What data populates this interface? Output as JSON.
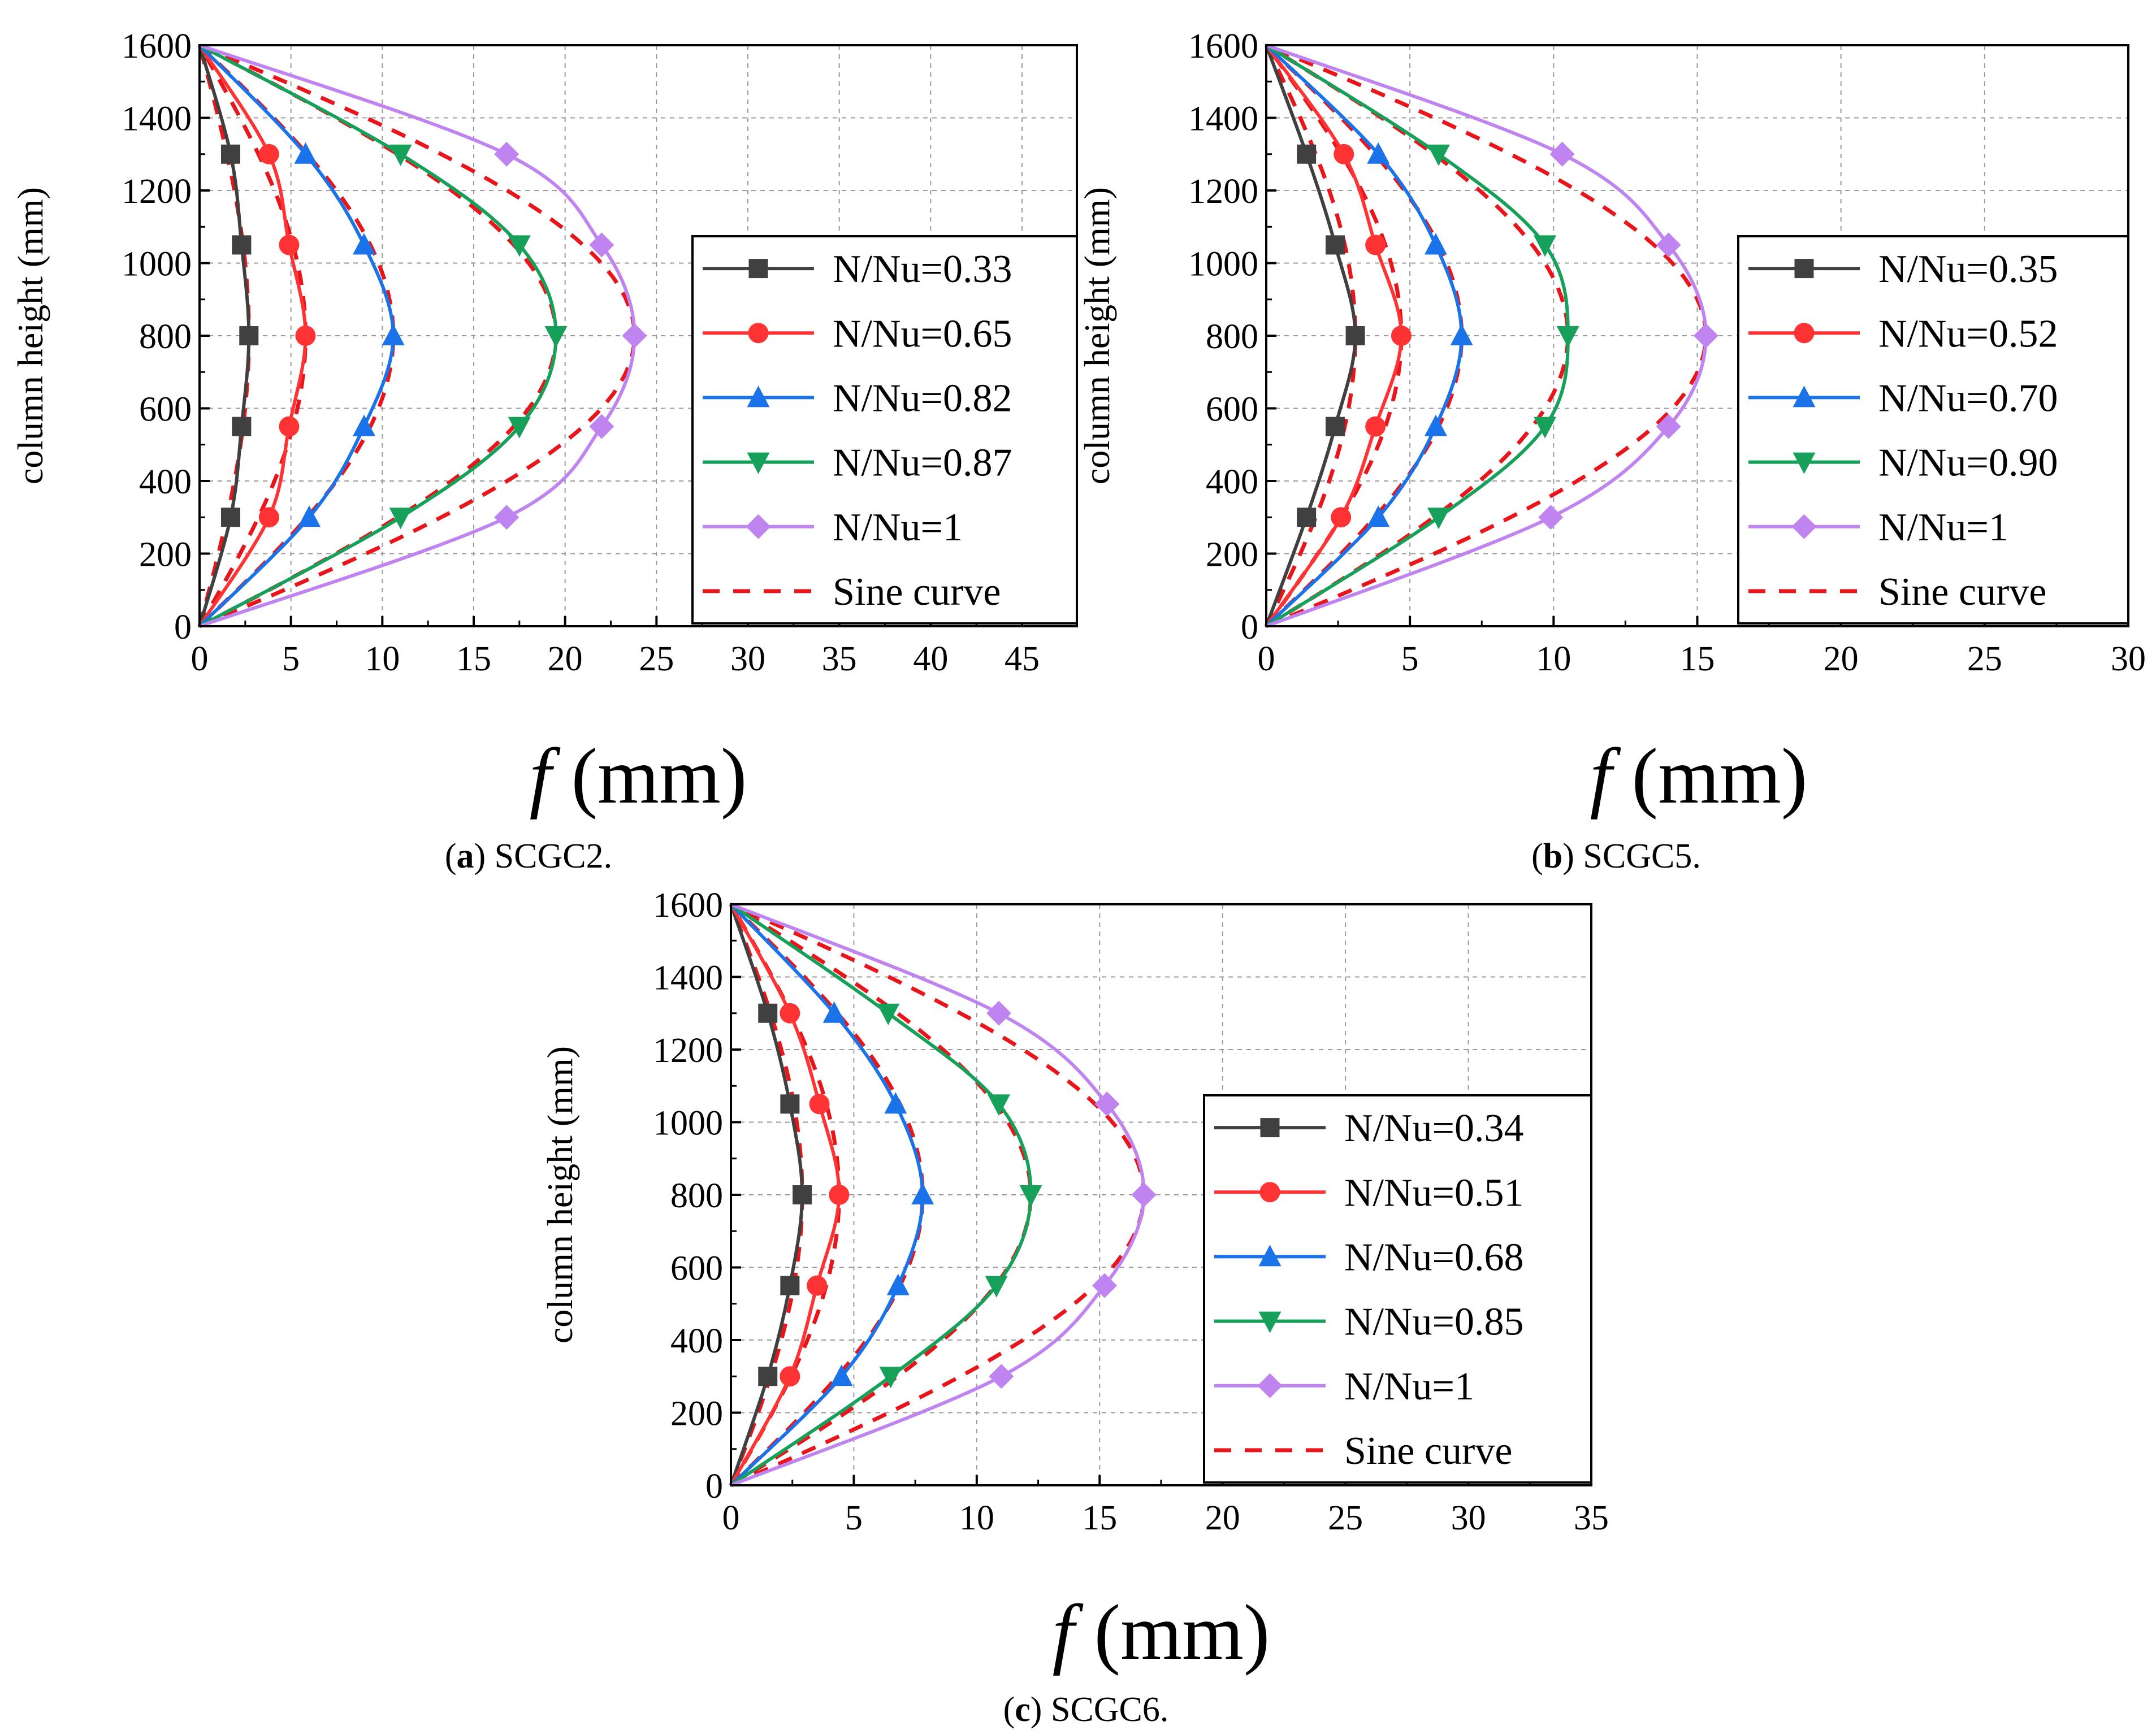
{
  "figure": {
    "xlabel": "f (mm)",
    "xlabel_italic": "f",
    "xlabel_unit": "(mm)",
    "ylabel": "column height (mm)"
  },
  "chart_data": [
    {
      "panel": "a",
      "caption_letter": "a",
      "caption_text": "SCGC2.",
      "type": "line",
      "xlabel": "f (mm)",
      "ylabel": "column height (mm)",
      "xlim": [
        0,
        48
      ],
      "ylim": [
        0,
        1600
      ],
      "xticks": [
        0,
        5,
        10,
        15,
        20,
        25,
        30,
        35,
        40,
        45
      ],
      "yticks": [
        0,
        200,
        400,
        600,
        800,
        1000,
        1200,
        1400,
        1600
      ],
      "grid": true,
      "legend_position": "right",
      "y": [
        0,
        300,
        550,
        800,
        1050,
        1300,
        1600
      ],
      "series": [
        {
          "name": "N/Nu=0.33",
          "color": "#404040",
          "marker": "square",
          "x": [
            0,
            1.7,
            2.3,
            2.7,
            2.3,
            1.7,
            0
          ],
          "sine_amplitude": 2.7
        },
        {
          "name": "N/Nu=0.65",
          "color": "#ff3333",
          "marker": "circle",
          "x": [
            0,
            3.8,
            4.9,
            5.8,
            4.9,
            3.8,
            0
          ],
          "sine_amplitude": 5.8
        },
        {
          "name": "N/Nu=0.82",
          "color": "#1a73e8",
          "marker": "triangle-up",
          "x": [
            0,
            6.0,
            9.0,
            10.6,
            9.0,
            5.8,
            0
          ],
          "sine_amplitude": 10.6
        },
        {
          "name": "N/Nu=0.87",
          "color": "#16a05a",
          "marker": "triangle-down",
          "x": [
            0,
            11.0,
            17.5,
            19.5,
            17.5,
            11.0,
            0
          ],
          "sine_amplitude": 19.5
        },
        {
          "name": "N/Nu=1",
          "color": "#c084f0",
          "marker": "diamond",
          "x": [
            0,
            16.8,
            22.0,
            23.8,
            22.0,
            16.8,
            0
          ],
          "sine_amplitude": 23.8
        }
      ],
      "sine_legend": "Sine curve"
    },
    {
      "panel": "b",
      "caption_letter": "b",
      "caption_text": "SCGC5.",
      "type": "line",
      "xlabel": "f (mm)",
      "ylabel": "column height (mm)",
      "xlim": [
        0,
        30
      ],
      "ylim": [
        0,
        1600
      ],
      "xticks": [
        0,
        5,
        10,
        15,
        20,
        25,
        30
      ],
      "yticks": [
        0,
        200,
        400,
        600,
        800,
        1000,
        1200,
        1400,
        1600
      ],
      "grid": true,
      "legend_position": "right",
      "y": [
        0,
        300,
        550,
        800,
        1050,
        1300,
        1600
      ],
      "series": [
        {
          "name": "N/Nu=0.35",
          "color": "#404040",
          "marker": "square",
          "x": [
            0,
            1.4,
            2.4,
            3.1,
            2.4,
            1.4,
            0
          ],
          "sine_amplitude": 3.1
        },
        {
          "name": "N/Nu=0.52",
          "color": "#ff3333",
          "marker": "circle",
          "x": [
            0,
            2.6,
            3.8,
            4.7,
            3.8,
            2.7,
            0
          ],
          "sine_amplitude": 4.7
        },
        {
          "name": "N/Nu=0.70",
          "color": "#1a73e8",
          "marker": "triangle-up",
          "x": [
            0,
            3.9,
            5.9,
            6.8,
            5.9,
            3.9,
            0
          ],
          "sine_amplitude": 6.8
        },
        {
          "name": "N/Nu=0.90",
          "color": "#16a05a",
          "marker": "triangle-down",
          "x": [
            0,
            6.0,
            9.7,
            10.5,
            9.7,
            6.0,
            0
          ],
          "sine_amplitude": 10.5
        },
        {
          "name": "N/Nu=1",
          "color": "#c084f0",
          "marker": "diamond",
          "x": [
            0,
            9.9,
            14.0,
            15.3,
            14.0,
            10.3,
            0
          ],
          "sine_amplitude": 15.3
        }
      ],
      "sine_legend": "Sine curve"
    },
    {
      "panel": "c",
      "caption_letter": "c",
      "caption_text": "SCGC6.",
      "type": "line",
      "xlabel": "f (mm)",
      "ylabel": "column height (mm)",
      "xlim": [
        0,
        35
      ],
      "ylim": [
        0,
        1600
      ],
      "xticks": [
        0,
        5,
        10,
        15,
        20,
        25,
        30,
        35
      ],
      "yticks": [
        0,
        200,
        400,
        600,
        800,
        1000,
        1200,
        1400,
        1600
      ],
      "grid": true,
      "legend_position": "right",
      "y": [
        0,
        300,
        550,
        800,
        1050,
        1300,
        1600
      ],
      "series": [
        {
          "name": "N/Nu=0.34",
          "color": "#404040",
          "marker": "square",
          "x": [
            0,
            1.5,
            2.4,
            2.9,
            2.4,
            1.5,
            0
          ],
          "sine_amplitude": 2.9
        },
        {
          "name": "N/Nu=0.51",
          "color": "#ff3333",
          "marker": "circle",
          "x": [
            0,
            2.4,
            3.5,
            4.4,
            3.6,
            2.4,
            0
          ],
          "sine_amplitude": 4.4
        },
        {
          "name": "N/Nu=0.68",
          "color": "#1a73e8",
          "marker": "triangle-up",
          "x": [
            0,
            4.5,
            6.8,
            7.8,
            6.7,
            4.2,
            0
          ],
          "sine_amplitude": 7.8
        },
        {
          "name": "N/Nu=0.85",
          "color": "#16a05a",
          "marker": "triangle-down",
          "x": [
            0,
            6.5,
            10.8,
            12.2,
            10.9,
            6.4,
            0
          ],
          "sine_amplitude": 12.2
        },
        {
          "name": "N/Nu=1",
          "color": "#c084f0",
          "marker": "diamond",
          "x": [
            0,
            11.0,
            15.2,
            16.8,
            15.3,
            10.9,
            0
          ],
          "sine_amplitude": 16.8
        }
      ],
      "sine_legend": "Sine curve"
    }
  ]
}
